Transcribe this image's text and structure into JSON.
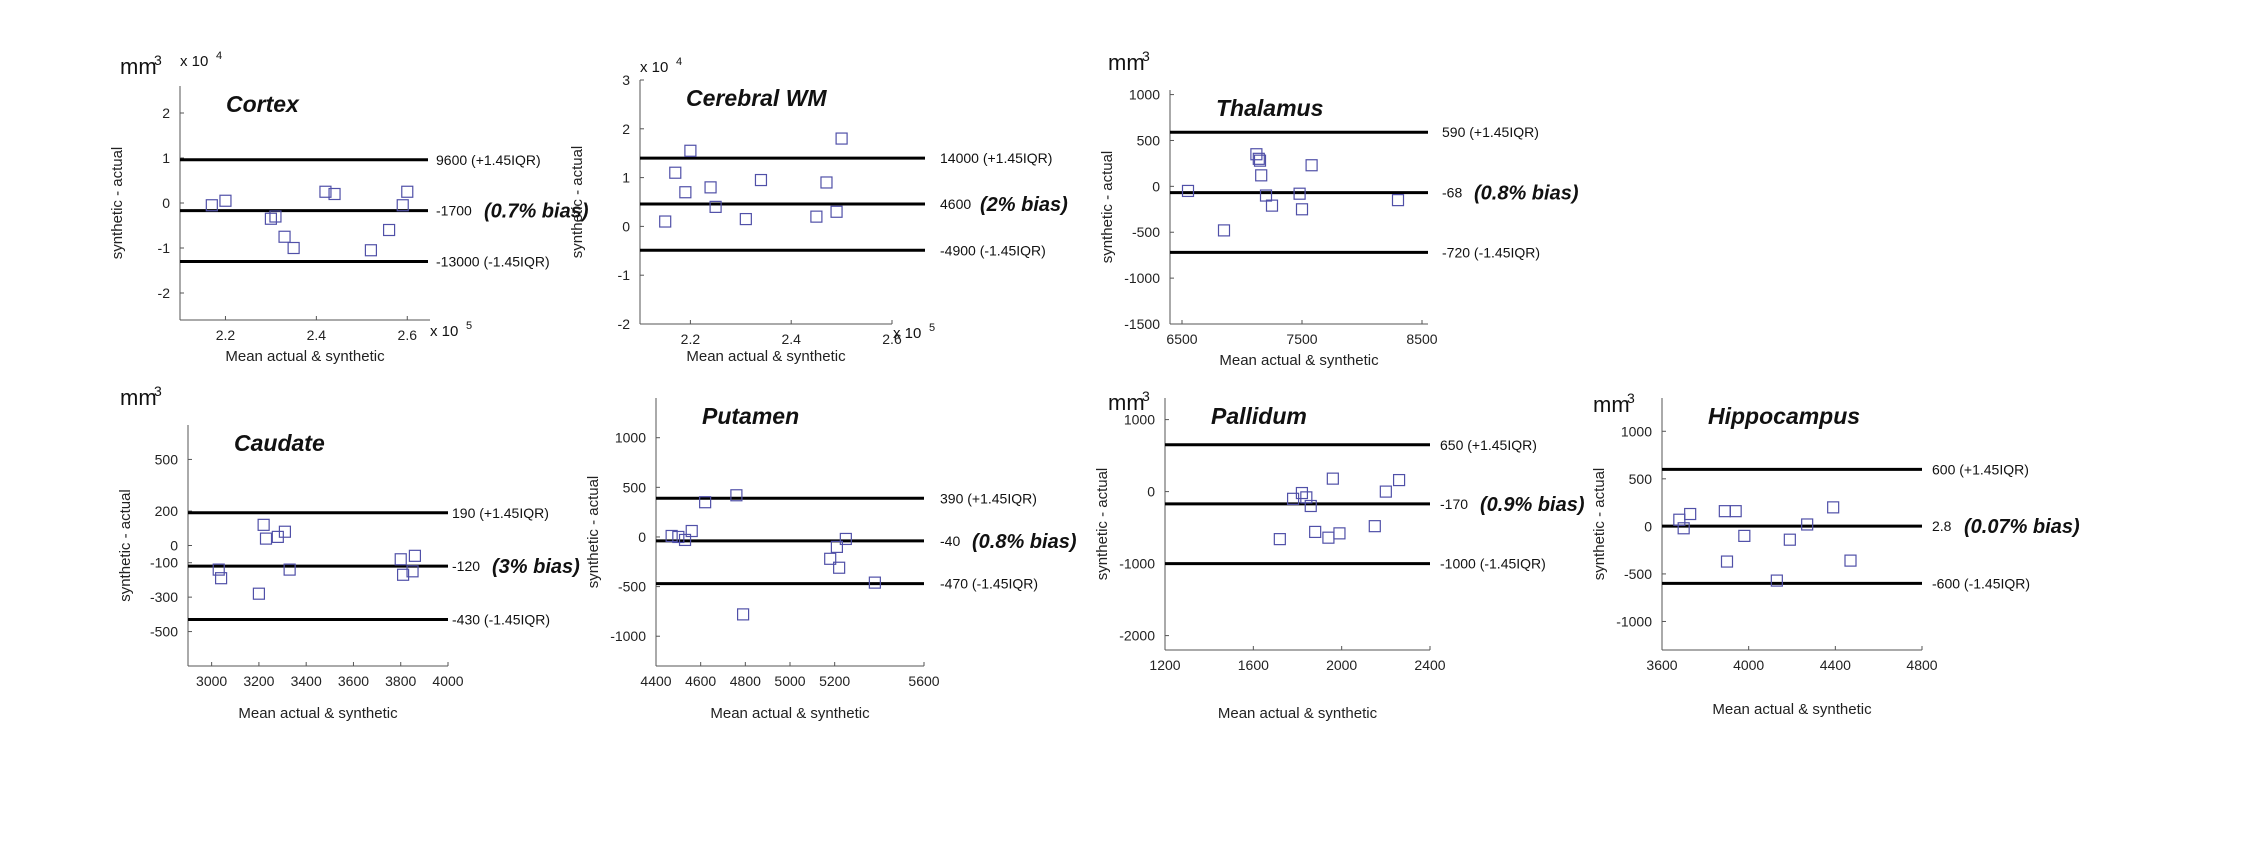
{
  "chart_data": [
    {
      "type": "scatter",
      "title": "Cortex",
      "unit": "mm",
      "unit_exp": "3",
      "y_multiplier": "x 10",
      "y_multiplier_exp": "4",
      "x_multiplier": "x 10",
      "x_multiplier_exp": "5",
      "xlabel": "Mean actual & synthetic",
      "ylabel": "synthetic - actual",
      "xlim": [
        2.1,
        2.65
      ],
      "ylim": [
        -2.6,
        2.6
      ],
      "xticks": [
        "2.2",
        "2.4",
        "2.6"
      ],
      "yticks": [
        "-2",
        "-1",
        "0",
        "1",
        "2"
      ],
      "points": {
        "x": [
          2.17,
          2.2,
          2.3,
          2.31,
          2.33,
          2.35,
          2.42,
          2.44,
          2.52,
          2.56,
          2.59,
          2.6
        ],
        "y": [
          -0.05,
          0.05,
          -0.35,
          -0.3,
          -0.75,
          -1.0,
          0.25,
          0.2,
          -1.05,
          -0.6,
          -0.05,
          0.25
        ]
      },
      "lines": [
        {
          "y": 0.96,
          "label": "9600 (+1.45IQR)"
        },
        {
          "y": -0.17,
          "label": "-1700",
          "bias": "(0.7% bias)"
        },
        {
          "y": -1.3,
          "label": "-13000 (-1.45IQR)"
        }
      ]
    },
    {
      "type": "scatter",
      "title": "Cerebral WM",
      "unit": "",
      "unit_exp": "",
      "y_multiplier": "x 10",
      "y_multiplier_exp": "4",
      "x_multiplier": "x 10",
      "x_multiplier_exp": "5",
      "xlabel": "Mean actual & synthetic",
      "ylabel": "synthetic - actual",
      "xlim": [
        2.1,
        2.6
      ],
      "ylim": [
        -2,
        3
      ],
      "xticks": [
        "2.2",
        "2.4",
        "2.6"
      ],
      "yticks": [
        "-2",
        "-1",
        "0",
        "1",
        "2",
        "3"
      ],
      "points": {
        "x": [
          2.15,
          2.17,
          2.19,
          2.2,
          2.24,
          2.25,
          2.31,
          2.34,
          2.45,
          2.47,
          2.49,
          2.5
        ],
        "y": [
          0.1,
          1.1,
          0.7,
          1.55,
          0.8,
          0.4,
          0.15,
          0.95,
          0.2,
          0.9,
          0.3,
          1.8
        ]
      },
      "lines": [
        {
          "y": 1.4,
          "label": "14000 (+1.45IQR)"
        },
        {
          "y": 0.46,
          "label": "4600",
          "bias": "(2% bias)"
        },
        {
          "y": -0.49,
          "label": "-4900 (-1.45IQR)"
        }
      ]
    },
    {
      "type": "scatter",
      "title": "Thalamus",
      "unit": "mm",
      "unit_exp": "3",
      "xlabel": "Mean actual & synthetic",
      "ylabel": "synthetic - actual",
      "xlim": [
        6400,
        8550
      ],
      "ylim": [
        -1500,
        1050
      ],
      "xticks": [
        "6500",
        "7500",
        "8500"
      ],
      "yticks": [
        "-1500",
        "-1000",
        "-500",
        "0",
        "500",
        "1000"
      ],
      "points": {
        "x": [
          6550,
          6850,
          7120,
          7140,
          7150,
          7160,
          7200,
          7250,
          7480,
          7500,
          7580,
          8300
        ],
        "y": [
          -50,
          -480,
          350,
          300,
          280,
          120,
          -100,
          -210,
          -80,
          -250,
          230,
          -150
        ]
      },
      "lines": [
        {
          "y": 590,
          "label": "590 (+1.45IQR)"
        },
        {
          "y": -68,
          "label": "-68",
          "bias": "(0.8% bias)"
        },
        {
          "y": -720,
          "label": "-720 (-1.45IQR)"
        }
      ]
    },
    {
      "type": "scatter",
      "title": "Caudate",
      "unit": "mm",
      "unit_exp": "3",
      "xlabel": "Mean actual & synthetic",
      "ylabel": "synthetic - actual",
      "xlim": [
        2900,
        4000
      ],
      "ylim": [
        -700,
        700
      ],
      "xticks": [
        "3000",
        "3200",
        "3400",
        "3600",
        "3800",
        "4000"
      ],
      "yticks": [
        "500",
        "200",
        "0",
        "-100",
        "-300",
        "-500"
      ],
      "points": {
        "x": [
          3030,
          3040,
          3200,
          3220,
          3230,
          3280,
          3310,
          3330,
          3800,
          3810,
          3850,
          3860
        ],
        "y": [
          -140,
          -190,
          -280,
          120,
          40,
          50,
          80,
          -140,
          -80,
          -170,
          -150,
          -60
        ]
      },
      "lines": [
        {
          "y": 190,
          "label": "190 (+1.45IQR)"
        },
        {
          "y": -120,
          "label": "-120",
          "bias": "(3% bias)"
        },
        {
          "y": -430,
          "label": "-430 (-1.45IQR)"
        }
      ]
    },
    {
      "type": "scatter",
      "title": "Putamen",
      "unit": "",
      "unit_exp": "",
      "xlabel": "Mean actual & synthetic",
      "ylabel": "synthetic - actual",
      "xlim": [
        4400,
        5600
      ],
      "ylim": [
        -1300,
        1400
      ],
      "xticks": [
        "4400",
        "4600",
        "4800",
        "5000",
        "5200",
        "5600"
      ],
      "yticks": [
        "-1000",
        "-500",
        "0",
        "500",
        "1000"
      ],
      "points": {
        "x": [
          4470,
          4500,
          4530,
          4560,
          4620,
          4760,
          4790,
          5180,
          5210,
          5220,
          5250,
          5380
        ],
        "y": [
          10,
          0,
          -30,
          60,
          350,
          420,
          -780,
          -220,
          -100,
          -310,
          -20,
          -460
        ]
      },
      "lines": [
        {
          "y": 390,
          "label": "390 (+1.45IQR)"
        },
        {
          "y": -40,
          "label": "-40",
          "bias": "(0.8% bias)"
        },
        {
          "y": -470,
          "label": "-470 (-1.45IQR)"
        }
      ]
    },
    {
      "type": "scatter",
      "title": "Pallidum",
      "unit": "mm",
      "unit_exp": "3",
      "xlabel": "Mean actual & synthetic",
      "ylabel": "synthetic - actual",
      "xlim": [
        1200,
        2400
      ],
      "ylim": [
        -2200,
        1300
      ],
      "xticks": [
        "1200",
        "1600",
        "2000",
        "2400"
      ],
      "yticks": [
        "-2000",
        "-1000",
        "0",
        "1000"
      ],
      "points": {
        "x": [
          1720,
          1780,
          1820,
          1840,
          1860,
          1880,
          1940,
          1960,
          1990,
          2150,
          2200,
          2260
        ],
        "y": [
          -660,
          -100,
          -20,
          -80,
          -200,
          -560,
          -640,
          180,
          -580,
          -480,
          0,
          160
        ]
      },
      "lines": [
        {
          "y": 650,
          "label": "650 (+1.45IQR)"
        },
        {
          "y": -170,
          "label": "-170",
          "bias": "(0.9% bias)"
        },
        {
          "y": -1000,
          "label": "-1000 (-1.45IQR)"
        }
      ]
    },
    {
      "type": "scatter",
      "title": "Hippocampus",
      "unit": "mm",
      "unit_exp": "3",
      "xlabel": "Mean actual & synthetic",
      "ylabel": "synthetic - actual",
      "xlim": [
        3600,
        4800
      ],
      "ylim": [
        -1300,
        1350
      ],
      "xticks": [
        "3600",
        "4000",
        "4400",
        "4800"
      ],
      "yticks": [
        "-1000",
        "-500",
        "0",
        "500",
        "1000"
      ],
      "points": {
        "x": [
          3680,
          3700,
          3730,
          3890,
          3900,
          3940,
          3980,
          4130,
          4190,
          4270,
          4390,
          4470
        ],
        "y": [
          70,
          -20,
          130,
          160,
          -370,
          160,
          -100,
          -570,
          -140,
          20,
          200,
          -360
        ]
      },
      "lines": [
        {
          "y": 600,
          "label": "600 (+1.45IQR)"
        },
        {
          "y": 2.8,
          "label": "2.8",
          "bias": "(0.07% bias)"
        },
        {
          "y": -600,
          "label": "-600 (-1.45IQR)"
        }
      ]
    }
  ]
}
